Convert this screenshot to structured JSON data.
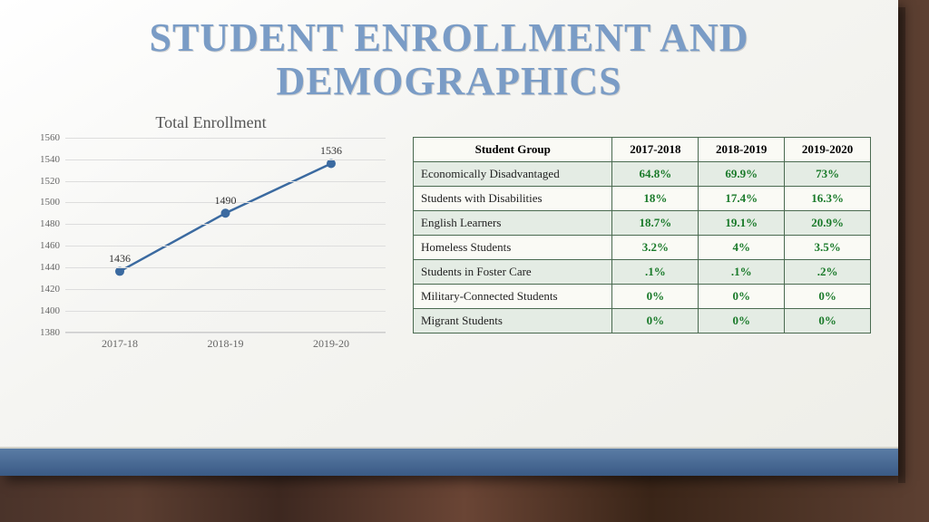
{
  "title": "STUDENT ENROLLMENT AND DEMOGRAPHICS",
  "chart": {
    "type": "line",
    "title": "Total Enrollment",
    "x_labels": [
      "2017-18",
      "2018-19",
      "2019-20"
    ],
    "values": [
      1436,
      1490,
      1536
    ],
    "ylim": [
      1380,
      1560
    ],
    "ytick_step": 20,
    "line_color": "#3b6aa0",
    "marker_color": "#3b6aa0",
    "marker_size": 5,
    "line_width": 2.5,
    "grid_color": "#dddddd",
    "label_fontsize": 11,
    "title_fontsize": 18,
    "title_color": "#555555"
  },
  "table": {
    "columns": [
      "Student Group",
      "2017-2018",
      "2018-2019",
      "2019-2020"
    ],
    "rows": [
      [
        "Economically Disadvantaged",
        "64.8%",
        "69.9%",
        "73%"
      ],
      [
        "Students with Disabilities",
        "18%",
        "17.4%",
        "16.3%"
      ],
      [
        "English Learners",
        "18.7%",
        "19.1%",
        "20.9%"
      ],
      [
        "Homeless Students",
        "3.2%",
        "4%",
        "3.5%"
      ],
      [
        "Students in Foster Care",
        ".1%",
        ".1%",
        ".2%"
      ],
      [
        "Military-Connected Students",
        "0%",
        "0%",
        "0%"
      ],
      [
        "Migrant Students",
        "0%",
        "0%",
        "0%"
      ]
    ],
    "header_bg": "#fafaf5",
    "row_odd_bg": "#e4ece4",
    "row_even_bg": "#fafaf5",
    "border_color": "#4a6a50",
    "value_color": "#1a7a2a",
    "fontsize": 13
  },
  "footer_bar_color": "#3a5a85"
}
